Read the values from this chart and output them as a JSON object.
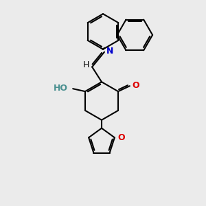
{
  "bg": "#ebebeb",
  "bc": "#000000",
  "Nc": "#0000cc",
  "Oc": "#dd0000",
  "Hc": "#4a9090",
  "lw": 1.5,
  "figsize": [
    3.0,
    3.0
  ],
  "dpi": 100,
  "xlim": [
    0,
    300
  ],
  "ylim": [
    0,
    300
  ]
}
